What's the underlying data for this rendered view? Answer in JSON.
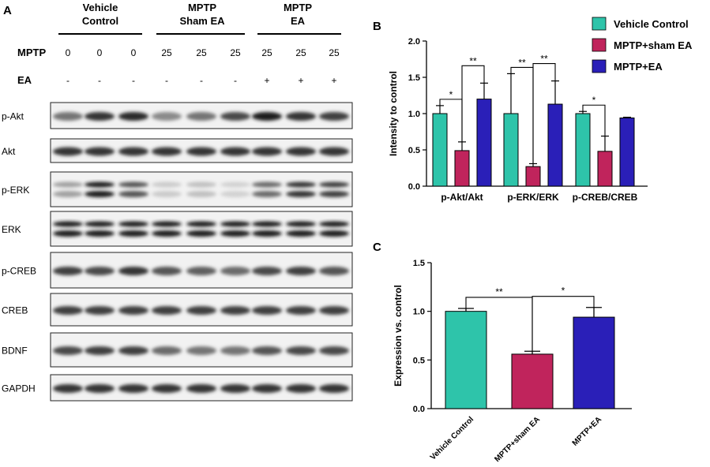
{
  "panels": {
    "a": "A",
    "b": "B",
    "c": "C"
  },
  "blot": {
    "groups": [
      {
        "line1": "Vehicle",
        "line2": "Control"
      },
      {
        "line1": "MPTP",
        "line2": "Sham EA"
      },
      {
        "line1": "MPTP",
        "line2": "EA"
      }
    ],
    "row_mptp_label": "MPTP",
    "mptp_values": [
      "0",
      "0",
      "0",
      "25",
      "25",
      "25",
      "25",
      "25",
      "25"
    ],
    "row_ea_label": "EA",
    "ea_values": [
      "-",
      "-",
      "-",
      "-",
      "-",
      "-",
      "+",
      "+",
      "+"
    ],
    "proteins": [
      {
        "name": "p-Akt",
        "intensity": [
          0.55,
          0.85,
          0.9,
          0.45,
          0.55,
          0.75,
          0.95,
          0.85,
          0.8
        ],
        "bands": 1
      },
      {
        "name": "Akt",
        "intensity": [
          0.85,
          0.85,
          0.85,
          0.85,
          0.85,
          0.85,
          0.85,
          0.85,
          0.85
        ],
        "bands": 1
      },
      {
        "name": "p-ERK",
        "intensity": [
          0.35,
          0.95,
          0.7,
          0.15,
          0.2,
          0.12,
          0.6,
          0.85,
          0.8
        ],
        "bands": 2
      },
      {
        "name": "ERK",
        "intensity": [
          0.95,
          0.95,
          0.95,
          0.95,
          0.95,
          0.95,
          0.95,
          0.95,
          0.95
        ],
        "bands": 2
      },
      {
        "name": "p-CREB",
        "intensity": [
          0.8,
          0.75,
          0.85,
          0.7,
          0.65,
          0.6,
          0.75,
          0.8,
          0.7
        ],
        "bands": 1
      },
      {
        "name": "CREB",
        "intensity": [
          0.8,
          0.8,
          0.8,
          0.8,
          0.8,
          0.8,
          0.8,
          0.8,
          0.8
        ],
        "bands": 1
      },
      {
        "name": "BDNF",
        "intensity": [
          0.75,
          0.8,
          0.8,
          0.6,
          0.55,
          0.55,
          0.7,
          0.75,
          0.75
        ],
        "bands": 1
      },
      {
        "name": "GAPDH",
        "intensity": [
          0.85,
          0.85,
          0.85,
          0.85,
          0.85,
          0.85,
          0.85,
          0.85,
          0.85
        ],
        "bands": 1
      }
    ]
  },
  "chart_data": [
    {
      "type": "bar",
      "panel": "B",
      "categories": [
        "p-Akt/Akt",
        "p-ERK/ERK",
        "p-CREB/CREB"
      ],
      "series": [
        {
          "name": "Vehicle Control",
          "color": "#2ec4aa",
          "values": [
            1.0,
            1.0,
            1.0
          ],
          "errors": [
            0.11,
            0.55,
            0.03
          ]
        },
        {
          "name": "MPTP+sham EA",
          "color": "#c0245c",
          "values": [
            0.49,
            0.27,
            0.48
          ],
          "errors": [
            0.12,
            0.04,
            0.21
          ]
        },
        {
          "name": "MPTP+EA",
          "color": "#2a1fb8",
          "values": [
            1.2,
            1.13,
            0.94
          ],
          "errors": [
            0.22,
            0.32,
            0.01
          ]
        }
      ],
      "ylabel": "Intensity to control",
      "ylim": [
        0,
        2.0
      ],
      "yticks": [
        "0.0",
        "0.5",
        "1.0",
        "1.5",
        "2.0"
      ],
      "legend": "top-right",
      "significance": [
        {
          "category": 0,
          "from": 0,
          "to": 1,
          "label": "*"
        },
        {
          "category": 0,
          "from": 1,
          "to": 2,
          "label": "**"
        },
        {
          "category": 1,
          "from": 0,
          "to": 1,
          "label": "**"
        },
        {
          "category": 1,
          "from": 1,
          "to": 2,
          "label": "**"
        },
        {
          "category": 2,
          "from": 0,
          "to": 1,
          "label": "*"
        }
      ]
    },
    {
      "type": "bar",
      "panel": "C",
      "categories": [
        "Vehicle Control",
        "MPTP+sham EA",
        "MPTP+EA"
      ],
      "colors": [
        "#2ec4aa",
        "#c0245c",
        "#2a1fb8"
      ],
      "values": [
        1.0,
        0.56,
        0.94
      ],
      "errors": [
        0.03,
        0.03,
        0.1
      ],
      "ylabel": "Expression vs. control",
      "ylim": [
        0,
        1.5
      ],
      "yticks": [
        "0.0",
        "0.5",
        "1.0",
        "1.5"
      ],
      "significance": [
        {
          "from": 0,
          "to": 1,
          "label": "**"
        },
        {
          "from": 1,
          "to": 2,
          "label": "*"
        }
      ]
    }
  ]
}
